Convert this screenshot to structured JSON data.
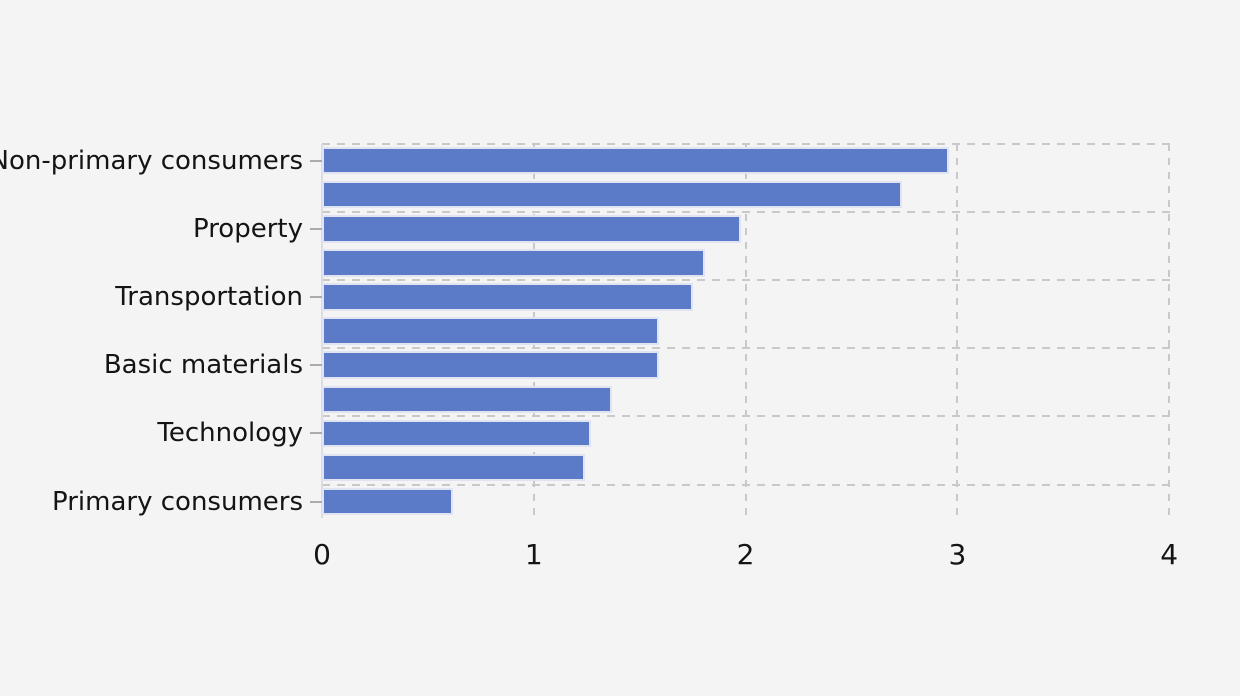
{
  "chart_data": {
    "type": "bar",
    "orientation": "horizontal",
    "title": "",
    "xlabel": "",
    "ylabel": "",
    "bars": [
      {
        "label": "Non-primary consumers",
        "value": 2.96
      },
      {
        "label": "",
        "value": 2.74
      },
      {
        "label": "Property",
        "value": 1.98
      },
      {
        "label": "",
        "value": 1.81
      },
      {
        "label": "Transportation",
        "value": 1.75
      },
      {
        "label": "",
        "value": 1.59
      },
      {
        "label": "Basic materials",
        "value": 1.59
      },
      {
        "label": "",
        "value": 1.37
      },
      {
        "label": "Technology",
        "value": 1.27
      },
      {
        "label": "",
        "value": 1.24
      },
      {
        "label": "Primary consumers",
        "value": 0.62
      }
    ],
    "group_size": 2,
    "x_ticks": [
      "0",
      "1",
      "2",
      "3",
      "4"
    ],
    "xlim": [
      0,
      4
    ],
    "grid": "dashed",
    "legend": "none",
    "colors": {
      "bar": "#5b7ac7",
      "bar_edge": "#dfe3f2",
      "background": "#f4f4f5",
      "grid_line": "#c9c9c9",
      "axis_spine": "#dcdce2",
      "tick_mark": "#ababab",
      "text": "#141414"
    }
  }
}
